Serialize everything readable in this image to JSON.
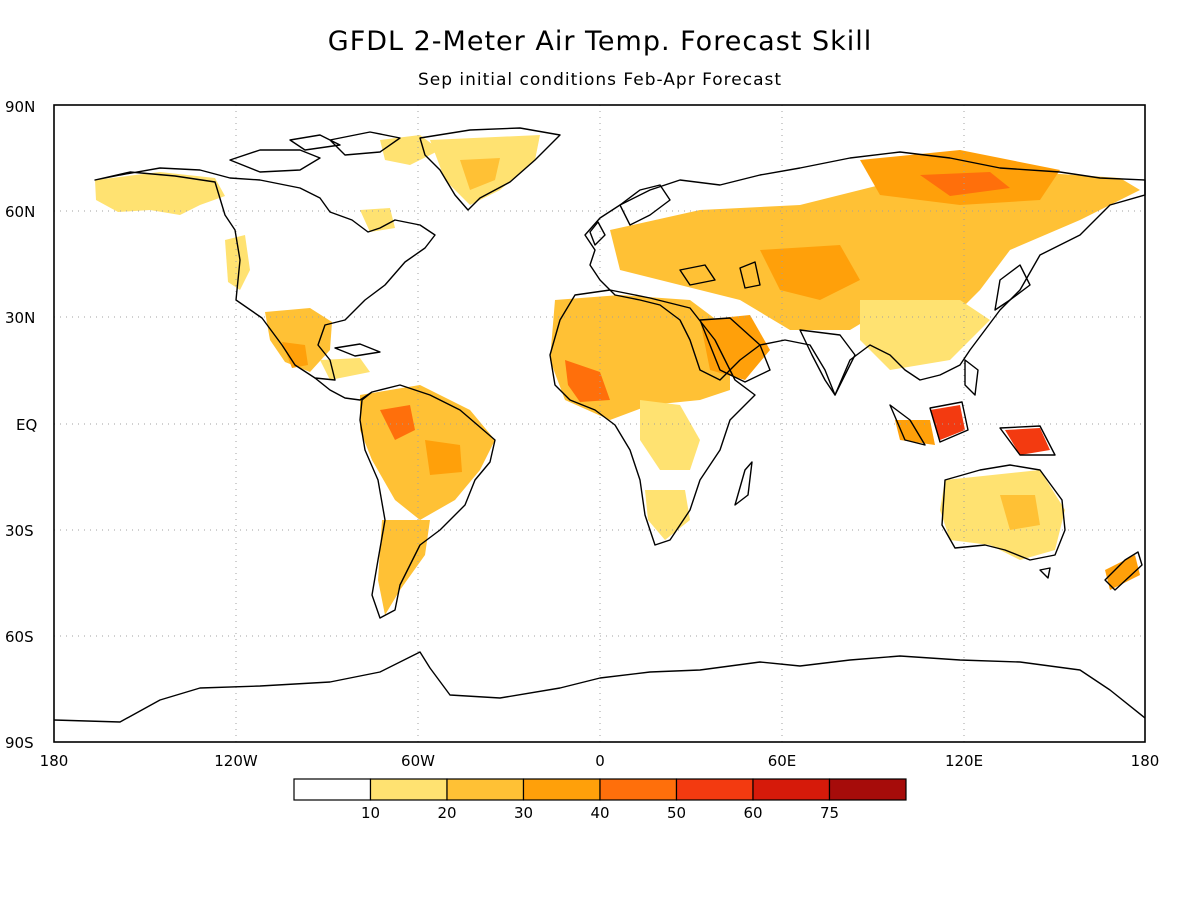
{
  "title": "GFDL 2-Meter Air Temp. Forecast Skill",
  "subtitle": "Sep initial conditions  Feb-Apr Forecast",
  "lat_labels": [
    "90N",
    "60N",
    "30N",
    "EQ",
    "30S",
    "60S",
    "90S"
  ],
  "lon_labels": [
    "180",
    "120W",
    "60W",
    "0",
    "60E",
    "120E",
    "180"
  ],
  "legend": {
    "labels": [
      "10",
      "20",
      "30",
      "40",
      "50",
      "60",
      "75"
    ],
    "colors": [
      "#ffffff",
      "#ffe271",
      "#ffc135",
      "#ffa00a",
      "#ff6f0b",
      "#f33a10",
      "#d61a0a",
      "#a60c0a"
    ]
  },
  "colors": {
    "land_outline": "#000000",
    "grid": "#a0a0a0",
    "c10": "#ffe271",
    "c20": "#ffc135",
    "c30": "#ffa00a",
    "c40": "#ff6f0b",
    "c50": "#f33a10"
  }
}
